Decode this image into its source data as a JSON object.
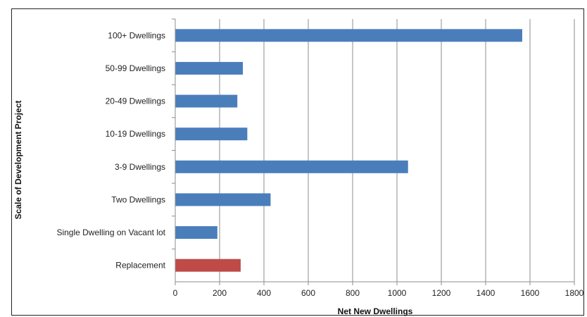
{
  "chart_data": {
    "type": "bar",
    "orientation": "horizontal",
    "title": "",
    "xlabel": "Net New Dwellings",
    "ylabel": "Scale of Development Project",
    "xlim": [
      0,
      1800
    ],
    "xticks": [
      "0",
      "200",
      "400",
      "600",
      "800",
      "1000",
      "1200",
      "1400",
      "1600",
      "1800"
    ],
    "grid": "vertical",
    "categories": [
      "100+ Dwellings",
      "50-99 Dwellings",
      "20-49 Dwellings",
      "10-19 Dwellings",
      "3-9 Dwellings",
      "Two Dwellings",
      "Single Dwelling on Vacant lot",
      "Replacement"
    ],
    "values": [
      1565,
      305,
      280,
      325,
      1050,
      430,
      190,
      295
    ],
    "colors": [
      "#4a7ebb",
      "#4a7ebb",
      "#4a7ebb",
      "#4a7ebb",
      "#4a7ebb",
      "#4a7ebb",
      "#4a7ebb",
      "#be4b48"
    ]
  }
}
